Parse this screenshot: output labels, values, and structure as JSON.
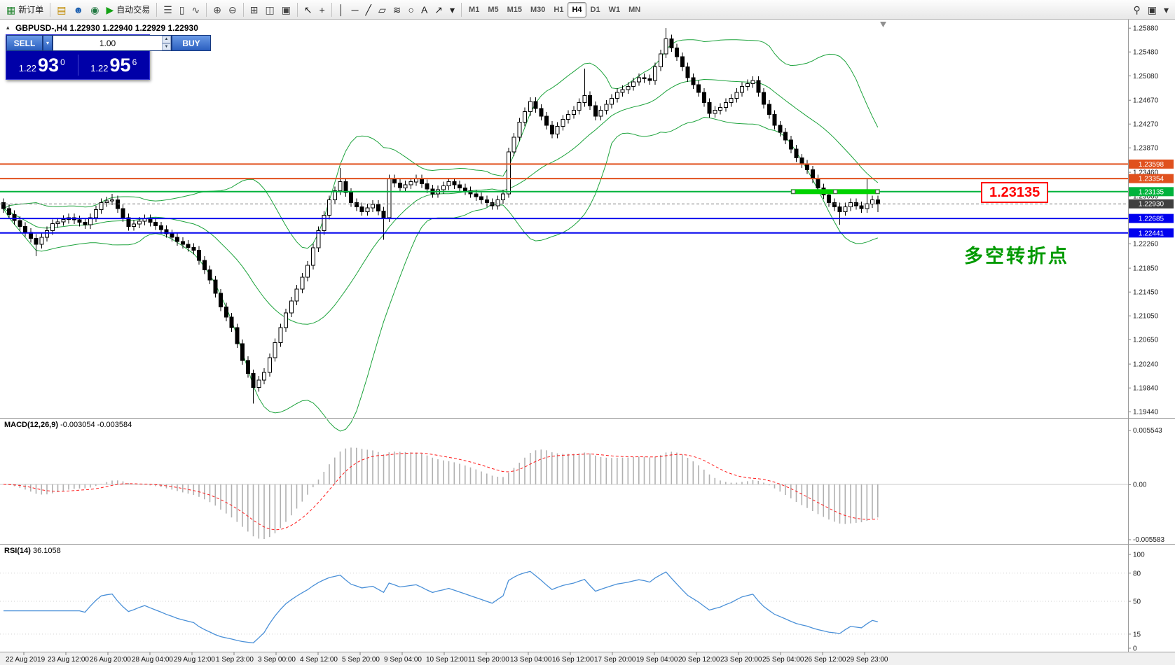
{
  "toolbar": {
    "items": [
      {
        "k": "btn",
        "name": "new-order-button",
        "glyph": "▦",
        "color": "#2e8b3a",
        "label": "新订单"
      },
      {
        "k": "sep"
      },
      {
        "k": "btn",
        "name": "charts-profile-button",
        "glyph": "▤",
        "color": "#c08a00"
      },
      {
        "k": "btn",
        "name": "market-watch-button",
        "glyph": "☻",
        "color": "#1c5fb0"
      },
      {
        "k": "btn",
        "name": "data-window-button",
        "glyph": "◉",
        "color": "#207840"
      },
      {
        "k": "btn",
        "name": "auto-trading-button",
        "glyph": "▶",
        "color": "#12a112",
        "label": "自动交易"
      },
      {
        "k": "sep"
      },
      {
        "k": "btn",
        "name": "bar-chart-button",
        "glyph": "☰",
        "color": "#444"
      },
      {
        "k": "btn",
        "name": "candlestick-chart-button",
        "glyph": "▯",
        "color": "#444"
      },
      {
        "k": "btn",
        "name": "line-chart-button",
        "glyph": "∿",
        "color": "#444"
      },
      {
        "k": "sep"
      },
      {
        "k": "btn",
        "name": "zoom-in-button",
        "glyph": "⊕",
        "color": "#444"
      },
      {
        "k": "btn",
        "name": "zoom-out-button",
        "glyph": "⊖",
        "color": "#444"
      },
      {
        "k": "sep"
      },
      {
        "k": "btn",
        "name": "tile-windows-button",
        "glyph": "⊞",
        "color": "#444"
      },
      {
        "k": "btn",
        "name": "cascade-windows-button",
        "glyph": "◫",
        "color": "#444"
      },
      {
        "k": "btn",
        "name": "arrange-windows-button",
        "glyph": "▣",
        "color": "#444"
      },
      {
        "k": "sep"
      },
      {
        "k": "btn",
        "name": "cursor-button",
        "glyph": "↖",
        "color": "#222"
      },
      {
        "k": "btn",
        "name": "crosshair-button",
        "glyph": "+",
        "color": "#222"
      },
      {
        "k": "sep"
      },
      {
        "k": "btn",
        "name": "vertical-line-button",
        "glyph": "│",
        "color": "#222"
      },
      {
        "k": "btn",
        "name": "horizontal-line-button",
        "glyph": "─",
        "color": "#222"
      },
      {
        "k": "btn",
        "name": "trendline-button",
        "glyph": "╱",
        "color": "#222"
      },
      {
        "k": "btn",
        "name": "channel-button",
        "glyph": "▱",
        "color": "#222"
      },
      {
        "k": "btn",
        "name": "fibonacci-button",
        "glyph": "≋",
        "color": "#222"
      },
      {
        "k": "btn",
        "name": "shapes-button",
        "glyph": "○",
        "color": "#222"
      },
      {
        "k": "btn",
        "name": "text-button",
        "glyph": "A",
        "color": "#222"
      },
      {
        "k": "btn",
        "name": "arrow-tools-button",
        "glyph": "↗",
        "color": "#222"
      },
      {
        "k": "btn",
        "name": "objects-dropdown",
        "glyph": "▾",
        "color": "#222"
      },
      {
        "k": "sep"
      }
    ],
    "right_items": [
      {
        "k": "btn",
        "name": "search-button",
        "glyph": "⚲",
        "color": "#333"
      },
      {
        "k": "btn",
        "name": "terminal-button",
        "glyph": "▣",
        "color": "#333"
      },
      {
        "k": "btn",
        "name": "more-dropdown",
        "glyph": "▾",
        "color": "#333"
      }
    ],
    "timeframes": [
      "M1",
      "M5",
      "M15",
      "M30",
      "H1",
      "H4",
      "D1",
      "W1",
      "MN"
    ],
    "active_timeframe": "H4"
  },
  "chart": {
    "symbol_title": "GBPUSD-,H4",
    "ohlc_text": "1.22930 1.22940 1.22929 1.22930",
    "trade_panel": {
      "sell_label": "SELL",
      "buy_label": "BUY",
      "volume": "1.00",
      "bid_prefix": "1.22",
      "bid_big": "93",
      "bid_sup": "0",
      "ask_prefix": "1.22",
      "ask_big": "95",
      "ask_sup": "6"
    },
    "price_axis": [
      "1.25880",
      "1.25480",
      "1.25080",
      "1.24670",
      "1.24270",
      "1.23870",
      "1.23460",
      "1.23060",
      "1.22660",
      "1.22260",
      "1.21850",
      "1.21450",
      "1.21050",
      "1.20650",
      "1.20240",
      "1.19840",
      "1.19440"
    ],
    "time_axis": [
      "22 Aug 2019",
      "23 Aug 12:00",
      "26 Aug 20:00",
      "28 Aug 04:00",
      "29 Aug 12:00",
      "1 Sep 23:00",
      "3 Sep 00:00",
      "4 Sep 12:00",
      "5 Sep 20:00",
      "9 Sep 04:00",
      "10 Sep 12:00",
      "11 Sep 20:00",
      "13 Sep 04:00",
      "16 Sep 12:00",
      "17 Sep 20:00",
      "19 Sep 04:00",
      "20 Sep 12:00",
      "23 Sep 20:00",
      "25 Sep 04:00",
      "26 Sep 12:00",
      "29 Sep 23:00"
    ],
    "levels": [
      {
        "price": 1.23598,
        "label": "1.23598",
        "color": "#e0511e"
      },
      {
        "price": 1.23354,
        "label": "1.23354",
        "color": "#e0511e"
      },
      {
        "price": 1.23135,
        "label": "1.23135",
        "color": "#00b33c"
      },
      {
        "price": 1.2293,
        "label": "1.22930",
        "color": "#3f3f3f",
        "style": "current"
      },
      {
        "price": 1.22685,
        "label": "1.22685",
        "color": "#0000ee"
      },
      {
        "price": 1.22441,
        "label": "1.22441",
        "color": "#0000ee"
      }
    ],
    "green_segment": {
      "price": 1.23135,
      "from_candle": 145,
      "to_candle": 161,
      "color": "#00d300"
    },
    "annotation_price_label": "1.23135",
    "annotation_cn": "多空转折点"
  },
  "macd": {
    "title": "MACD(12,26,9)",
    "values_text": "-0.003054 -0.003584",
    "axis": [
      "0.005543",
      "0.00",
      "-0.005583"
    ]
  },
  "rsi": {
    "title": "RSI(14)",
    "value_text": "36.1058",
    "axis": [
      "100",
      "80",
      "50",
      "15",
      "0"
    ]
  },
  "chart_data": {
    "type": "candlestick",
    "symbol": "GBPUSD",
    "timeframe": "H4",
    "visible_price_range": [
      1.1944,
      1.2588
    ],
    "indicators": {
      "bollinger": {
        "period": 20,
        "deviation": 2
      },
      "macd": [
        12,
        26,
        9
      ],
      "rsi": 14
    },
    "candles": [
      [
        1.2295,
        1.2302,
        1.2278,
        1.2285
      ],
      [
        1.2285,
        1.2292,
        1.2268,
        1.2275
      ],
      [
        1.2275,
        1.2282,
        1.2258,
        1.2265
      ],
      [
        1.2265,
        1.2272,
        1.2248,
        1.2255
      ],
      [
        1.2255,
        1.2262,
        1.2238,
        1.2245
      ],
      [
        1.2245,
        1.2252,
        1.2228,
        1.2235
      ],
      [
        1.2235,
        1.2242,
        1.2205,
        1.2225
      ],
      [
        1.2225,
        1.2244,
        1.2218,
        1.2237
      ],
      [
        1.2237,
        1.2255,
        1.223,
        1.2248
      ],
      [
        1.2248,
        1.2267,
        1.2241,
        1.226
      ],
      [
        1.226,
        1.227,
        1.2253,
        1.2263
      ],
      [
        1.2263,
        1.2274,
        1.2256,
        1.2267
      ],
      [
        1.2267,
        1.2277,
        1.226,
        1.227
      ],
      [
        1.227,
        1.2277,
        1.2259,
        1.2266
      ],
      [
        1.2266,
        1.2273,
        1.2255,
        1.2262
      ],
      [
        1.2262,
        1.2269,
        1.2251,
        1.2258
      ],
      [
        1.2258,
        1.2277,
        1.2251,
        1.227
      ],
      [
        1.227,
        1.229,
        1.2263,
        1.2283
      ],
      [
        1.2283,
        1.2302,
        1.2276,
        1.2295
      ],
      [
        1.2295,
        1.2305,
        1.2288,
        1.2298
      ],
      [
        1.2298,
        1.231,
        1.2291,
        1.23
      ],
      [
        1.23,
        1.2307,
        1.2278,
        1.2285
      ],
      [
        1.2285,
        1.2292,
        1.2263,
        1.227
      ],
      [
        1.227,
        1.2277,
        1.2248,
        1.2255
      ],
      [
        1.2255,
        1.2266,
        1.2248,
        1.2259
      ],
      [
        1.2259,
        1.2271,
        1.2252,
        1.2264
      ],
      [
        1.2264,
        1.2275,
        1.2257,
        1.2268
      ],
      [
        1.2268,
        1.2275,
        1.2255,
        1.2262
      ],
      [
        1.2262,
        1.2269,
        1.2249,
        1.2256
      ],
      [
        1.2256,
        1.2263,
        1.2243,
        1.225
      ],
      [
        1.225,
        1.2257,
        1.2236,
        1.2243
      ],
      [
        1.2243,
        1.225,
        1.223,
        1.2237
      ],
      [
        1.2237,
        1.2244,
        1.2223,
        1.223
      ],
      [
        1.223,
        1.2237,
        1.2218,
        1.2225
      ],
      [
        1.2225,
        1.2232,
        1.2213,
        1.222
      ],
      [
        1.222,
        1.2227,
        1.2208,
        1.2215
      ],
      [
        1.2215,
        1.2222,
        1.2191,
        1.2198
      ],
      [
        1.2198,
        1.2205,
        1.2175,
        1.2182
      ],
      [
        1.2182,
        1.2189,
        1.2158,
        1.2165
      ],
      [
        1.2165,
        1.2172,
        1.2136,
        1.2143
      ],
      [
        1.2143,
        1.215,
        1.2113,
        1.212
      ],
      [
        1.212,
        1.2127,
        1.2096,
        1.2103
      ],
      [
        1.2103,
        1.211,
        1.2078,
        1.2085
      ],
      [
        1.2085,
        1.2092,
        1.2051,
        1.2058
      ],
      [
        1.2058,
        1.2065,
        1.2023,
        1.203
      ],
      [
        1.203,
        1.2037,
        1.2001,
        1.2008
      ],
      [
        1.2008,
        1.2015,
        1.1958,
        1.1985
      ],
      [
        1.1985,
        1.2004,
        1.1978,
        1.1997
      ],
      [
        1.1997,
        1.2017,
        1.199,
        1.201
      ],
      [
        1.201,
        1.2042,
        1.2003,
        1.2035
      ],
      [
        1.2035,
        1.2067,
        1.2028,
        1.206
      ],
      [
        1.206,
        1.2092,
        1.2053,
        1.2085
      ],
      [
        1.2085,
        1.2117,
        1.2078,
        1.211
      ],
      [
        1.211,
        1.2137,
        1.2103,
        1.213
      ],
      [
        1.213,
        1.2157,
        1.2123,
        1.215
      ],
      [
        1.215,
        1.2177,
        1.2143,
        1.217
      ],
      [
        1.217,
        1.2197,
        1.2163,
        1.219
      ],
      [
        1.219,
        1.2226,
        1.2183,
        1.2219
      ],
      [
        1.2219,
        1.2255,
        1.2212,
        1.2248
      ],
      [
        1.2248,
        1.2281,
        1.2241,
        1.2274
      ],
      [
        1.2274,
        1.2307,
        1.2267,
        1.23
      ],
      [
        1.23,
        1.2322,
        1.2293,
        1.2315
      ],
      [
        1.2315,
        1.2353,
        1.2308,
        1.233
      ],
      [
        1.233,
        1.2337,
        1.2305,
        1.2312
      ],
      [
        1.2312,
        1.2319,
        1.2288,
        1.2295
      ],
      [
        1.2295,
        1.2302,
        1.2281,
        1.2288
      ],
      [
        1.2288,
        1.2295,
        1.2273,
        1.228
      ],
      [
        1.228,
        1.2293,
        1.2273,
        1.2286
      ],
      [
        1.2286,
        1.2299,
        1.2279,
        1.2292
      ],
      [
        1.2292,
        1.2299,
        1.2274,
        1.2281
      ],
      [
        1.2281,
        1.2288,
        1.2233,
        1.227
      ],
      [
        1.227,
        1.2342,
        1.2263,
        1.2335
      ],
      [
        1.2335,
        1.2342,
        1.2321,
        1.2328
      ],
      [
        1.2328,
        1.2335,
        1.2313,
        1.232
      ],
      [
        1.232,
        1.2332,
        1.2313,
        1.2325
      ],
      [
        1.2325,
        1.2337,
        1.2318,
        1.233
      ],
      [
        1.233,
        1.2342,
        1.2323,
        1.2335
      ],
      [
        1.2335,
        1.2342,
        1.232,
        1.2327
      ],
      [
        1.2327,
        1.2334,
        1.2311,
        1.2318
      ],
      [
        1.2318,
        1.2325,
        1.2303,
        1.231
      ],
      [
        1.231,
        1.2324,
        1.2303,
        1.2317
      ],
      [
        1.2317,
        1.233,
        1.231,
        1.2323
      ],
      [
        1.2323,
        1.2337,
        1.2316,
        1.233
      ],
      [
        1.233,
        1.2337,
        1.2318,
        1.2325
      ],
      [
        1.2325,
        1.2332,
        1.2313,
        1.232
      ],
      [
        1.232,
        1.2327,
        1.2308,
        1.2315
      ],
      [
        1.2315,
        1.2322,
        1.2303,
        1.231
      ],
      [
        1.231,
        1.2317,
        1.2298,
        1.2305
      ],
      [
        1.2305,
        1.2312,
        1.2293,
        1.23
      ],
      [
        1.23,
        1.2307,
        1.2288,
        1.2295
      ],
      [
        1.2295,
        1.2302,
        1.2283,
        1.229
      ],
      [
        1.229,
        1.2307,
        1.2283,
        1.23
      ],
      [
        1.23,
        1.2317,
        1.2293,
        1.231
      ],
      [
        1.231,
        1.2387,
        1.2303,
        1.238
      ],
      [
        1.238,
        1.2412,
        1.2373,
        1.2405
      ],
      [
        1.2405,
        1.2437,
        1.2398,
        1.243
      ],
      [
        1.243,
        1.2455,
        1.2423,
        1.2448
      ],
      [
        1.2448,
        1.2472,
        1.2441,
        1.2465
      ],
      [
        1.2465,
        1.2472,
        1.2446,
        1.2453
      ],
      [
        1.2453,
        1.246,
        1.2433,
        1.244
      ],
      [
        1.244,
        1.2447,
        1.2418,
        1.2425
      ],
      [
        1.2425,
        1.2432,
        1.2403,
        1.241
      ],
      [
        1.241,
        1.243,
        1.2403,
        1.2423
      ],
      [
        1.2423,
        1.2442,
        1.2416,
        1.2435
      ],
      [
        1.2435,
        1.245,
        1.2428,
        1.2443
      ],
      [
        1.2443,
        1.2457,
        1.2436,
        1.245
      ],
      [
        1.245,
        1.247,
        1.2443,
        1.2463
      ],
      [
        1.2463,
        1.252,
        1.2456,
        1.2475
      ],
      [
        1.2475,
        1.2482,
        1.2451,
        1.2458
      ],
      [
        1.2458,
        1.2465,
        1.2433,
        1.244
      ],
      [
        1.244,
        1.2457,
        1.2433,
        1.245
      ],
      [
        1.245,
        1.2467,
        1.2443,
        1.246
      ],
      [
        1.246,
        1.2477,
        1.2453,
        1.247
      ],
      [
        1.247,
        1.2487,
        1.2463,
        1.248
      ],
      [
        1.248,
        1.2492,
        1.2473,
        1.2485
      ],
      [
        1.2485,
        1.2497,
        1.2478,
        1.249
      ],
      [
        1.249,
        1.2505,
        1.2483,
        1.2498
      ],
      [
        1.2498,
        1.2512,
        1.2491,
        1.2505
      ],
      [
        1.2505,
        1.2512,
        1.2496,
        1.2503
      ],
      [
        1.2503,
        1.251,
        1.2493,
        1.25
      ],
      [
        1.25,
        1.253,
        1.2493,
        1.2523
      ],
      [
        1.2523,
        1.2552,
        1.2516,
        1.2545
      ],
      [
        1.2545,
        1.2588,
        1.2538,
        1.257
      ],
      [
        1.257,
        1.2577,
        1.2548,
        1.2555
      ],
      [
        1.2555,
        1.2562,
        1.2533,
        1.254
      ],
      [
        1.254,
        1.2547,
        1.2516,
        1.2523
      ],
      [
        1.2523,
        1.253,
        1.2498,
        1.2505
      ],
      [
        1.2505,
        1.2512,
        1.2486,
        1.2493
      ],
      [
        1.2493,
        1.25,
        1.2473,
        1.248
      ],
      [
        1.248,
        1.2487,
        1.2456,
        1.2463
      ],
      [
        1.2463,
        1.247,
        1.2438,
        1.2445
      ],
      [
        1.2445,
        1.2457,
        1.2438,
        1.245
      ],
      [
        1.245,
        1.2462,
        1.2443,
        1.2455
      ],
      [
        1.2455,
        1.247,
        1.2448,
        1.2463
      ],
      [
        1.2463,
        1.2477,
        1.2456,
        1.247
      ],
      [
        1.247,
        1.2487,
        1.2463,
        1.248
      ],
      [
        1.248,
        1.2497,
        1.2473,
        1.249
      ],
      [
        1.249,
        1.2502,
        1.2483,
        1.2495
      ],
      [
        1.2495,
        1.2507,
        1.2488,
        1.25
      ],
      [
        1.25,
        1.2507,
        1.2473,
        1.248
      ],
      [
        1.248,
        1.2487,
        1.2453,
        1.246
      ],
      [
        1.246,
        1.2467,
        1.2436,
        1.2443
      ],
      [
        1.2443,
        1.245,
        1.2418,
        1.2425
      ],
      [
        1.2425,
        1.2432,
        1.2406,
        1.2413
      ],
      [
        1.2413,
        1.242,
        1.2393,
        1.24
      ],
      [
        1.24,
        1.2407,
        1.2378,
        1.2385
      ],
      [
        1.2385,
        1.2392,
        1.2363,
        1.237
      ],
      [
        1.237,
        1.2377,
        1.2353,
        1.236
      ],
      [
        1.236,
        1.2367,
        1.2343,
        1.235
      ],
      [
        1.235,
        1.2357,
        1.2328,
        1.2335
      ],
      [
        1.2335,
        1.2342,
        1.2313,
        1.232
      ],
      [
        1.232,
        1.2327,
        1.2301,
        1.2308
      ],
      [
        1.2308,
        1.2315,
        1.2288,
        1.2295
      ],
      [
        1.2295,
        1.2302,
        1.2281,
        1.2288
      ],
      [
        1.2288,
        1.2295,
        1.2258,
        1.228
      ],
      [
        1.228,
        1.2295,
        1.2273,
        1.2288
      ],
      [
        1.2288,
        1.2302,
        1.2281,
        1.2295
      ],
      [
        1.2295,
        1.2302,
        1.2283,
        1.229
      ],
      [
        1.229,
        1.2297,
        1.2278,
        1.2285
      ],
      [
        1.2285,
        1.2335,
        1.2278,
        1.2293
      ],
      [
        1.2293,
        1.2307,
        1.2286,
        1.23
      ],
      [
        1.23,
        1.2307,
        1.2279,
        1.2293
      ]
    ]
  }
}
